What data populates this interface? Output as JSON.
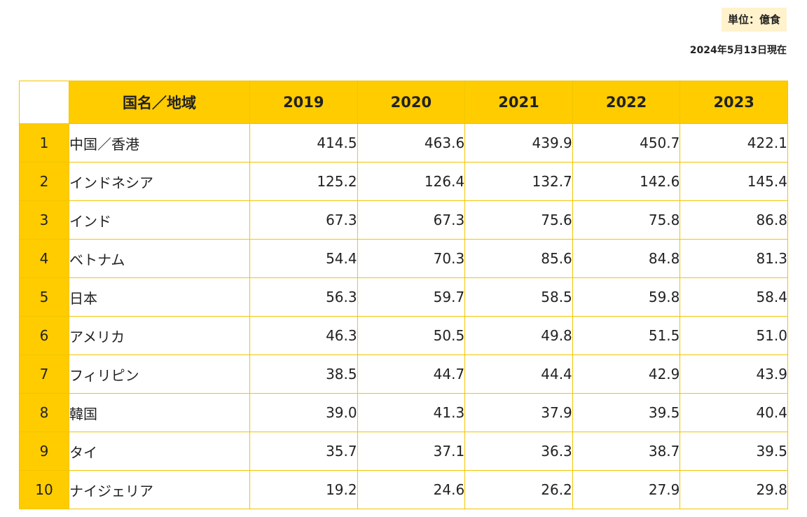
{
  "unit_label": "単位：億食",
  "as_of": "2024年5月13日現在",
  "table": {
    "corner": "",
    "country_header": "国名／地域",
    "years": [
      "2019",
      "2020",
      "2021",
      "2022",
      "2023"
    ],
    "rows": [
      {
        "rank": "1",
        "country": "中国／香港",
        "values": [
          "414.5",
          "463.6",
          "439.9",
          "450.7",
          "422.1"
        ]
      },
      {
        "rank": "2",
        "country": "インドネシア",
        "values": [
          "125.2",
          "126.4",
          "132.7",
          "142.6",
          "145.4"
        ]
      },
      {
        "rank": "3",
        "country": "インド",
        "values": [
          "67.3",
          "67.3",
          "75.6",
          "75.8",
          "86.8"
        ]
      },
      {
        "rank": "4",
        "country": "ベトナム",
        "values": [
          "54.4",
          "70.3",
          "85.6",
          "84.8",
          "81.3"
        ]
      },
      {
        "rank": "5",
        "country": "日本",
        "values": [
          "56.3",
          "59.7",
          "58.5",
          "59.8",
          "58.4"
        ]
      },
      {
        "rank": "6",
        "country": "アメリカ",
        "values": [
          "46.3",
          "50.5",
          "49.8",
          "51.5",
          "51.0"
        ]
      },
      {
        "rank": "7",
        "country": "フィリピン",
        "values": [
          "38.5",
          "44.7",
          "44.4",
          "42.9",
          "43.9"
        ]
      },
      {
        "rank": "8",
        "country": "韓国",
        "values": [
          "39.0",
          "41.3",
          "37.9",
          "39.5",
          "40.4"
        ]
      },
      {
        "rank": "9",
        "country": "タイ",
        "values": [
          "35.7",
          "37.1",
          "36.3",
          "38.7",
          "39.5"
        ]
      },
      {
        "rank": "10",
        "country": "ナイジェリア",
        "values": [
          "19.2",
          "24.6",
          "26.2",
          "27.9",
          "29.8"
        ]
      }
    ]
  },
  "chart_data": {
    "type": "table",
    "unit": "億食",
    "columns": [
      "国名／地域",
      "2019",
      "2020",
      "2021",
      "2022",
      "2023"
    ],
    "categories": [
      "中国／香港",
      "インドネシア",
      "インド",
      "ベトナム",
      "日本",
      "アメリカ",
      "フィリピン",
      "韓国",
      "タイ",
      "ナイジェリア"
    ],
    "x": [
      2019,
      2020,
      2021,
      2022,
      2023
    ],
    "series": [
      {
        "name": "中国／香港",
        "values": [
          414.5,
          463.6,
          439.9,
          450.7,
          422.1
        ]
      },
      {
        "name": "インドネシア",
        "values": [
          125.2,
          126.4,
          132.7,
          142.6,
          145.4
        ]
      },
      {
        "name": "インド",
        "values": [
          67.3,
          67.3,
          75.6,
          75.8,
          86.8
        ]
      },
      {
        "name": "ベトナム",
        "values": [
          54.4,
          70.3,
          85.6,
          84.8,
          81.3
        ]
      },
      {
        "name": "日本",
        "values": [
          56.3,
          59.7,
          58.5,
          59.8,
          58.4
        ]
      },
      {
        "name": "アメリカ",
        "values": [
          46.3,
          50.5,
          49.8,
          51.5,
          51.0
        ]
      },
      {
        "name": "フィリピン",
        "values": [
          38.5,
          44.7,
          44.4,
          42.9,
          43.9
        ]
      },
      {
        "name": "韓国",
        "values": [
          39.0,
          41.3,
          37.9,
          39.5,
          40.4
        ]
      },
      {
        "name": "タイ",
        "values": [
          35.7,
          37.1,
          36.3,
          38.7,
          39.5
        ]
      },
      {
        "name": "ナイジェリア",
        "values": [
          19.2,
          24.6,
          26.2,
          27.9,
          29.8
        ]
      }
    ]
  },
  "colors": {
    "header_bg": "#ffcc00",
    "rank_bg": "#ffcc00",
    "border": "#f2c500",
    "unit_badge_bg": "#fff2cc"
  }
}
